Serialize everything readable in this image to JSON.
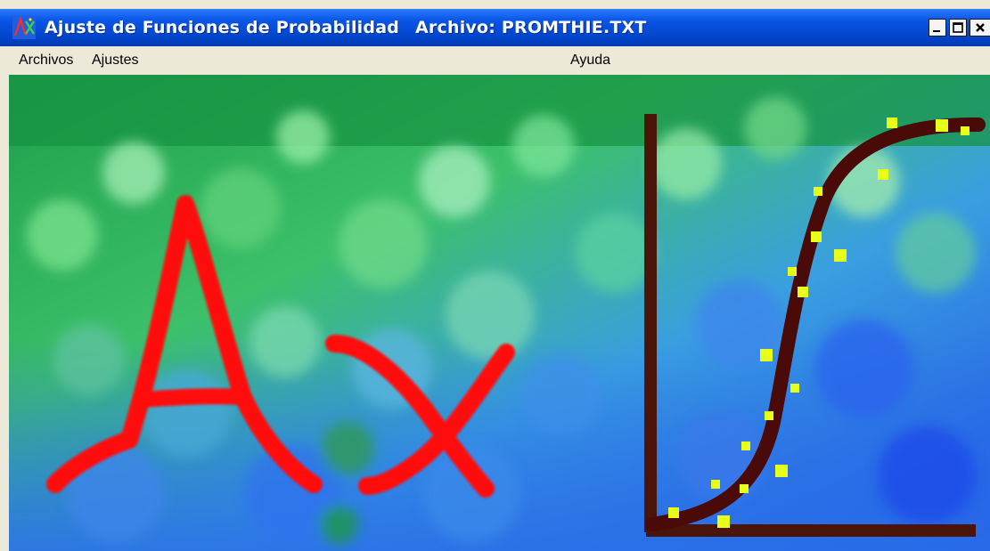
{
  "window": {
    "app_title": "Ajuste de Funciones de Probabilidad",
    "file_title": "Archivo: PROMTHIE.TXT",
    "icon": "app-chart-icon",
    "controls": {
      "minimize_label": "_",
      "maximize_label": "□",
      "close_label": "×"
    }
  },
  "menu": {
    "items": [
      {
        "label": "Archivos"
      },
      {
        "label": "Ajustes"
      },
      {
        "label": "Ayuda"
      }
    ]
  },
  "splash": {
    "glyph_letters": "Ax",
    "curve": "s-shaped cumulative curve with scattered yellow points on brown axes",
    "colors": {
      "letters": "#ff0d0d",
      "axes_and_curve": "#4a1408",
      "points": "#e8ff1a",
      "background_green": "#2fb35a",
      "background_blue": "#2a64e6"
    }
  }
}
